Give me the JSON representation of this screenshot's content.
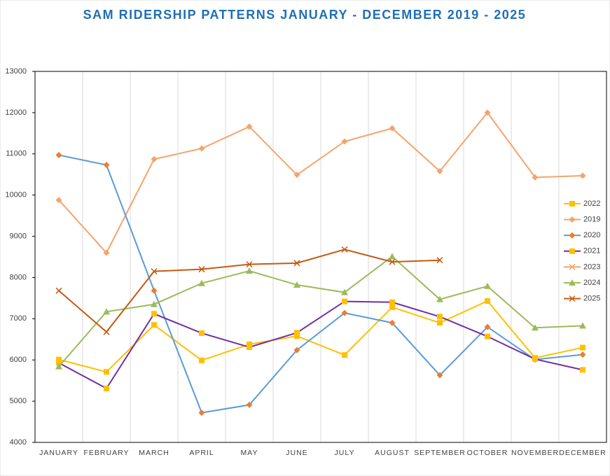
{
  "chart_data": {
    "type": "line",
    "title": "SAM RIDERSHIP PATTERNS JANUARY - DECEMBER 2019 - 2025",
    "categories": [
      "JANUARY",
      "FEBRUARY",
      "MARCH",
      "APRIL",
      "MAY",
      "JUNE",
      "JULY",
      "AUGUST",
      "SEPTEMBER",
      "OCTOBER",
      "NOVEMBER",
      "DECEMBER"
    ],
    "ylim": [
      4000,
      13000
    ],
    "yticks": [
      4000,
      5000,
      6000,
      7000,
      8000,
      9000,
      10000,
      11000,
      12000,
      13000
    ],
    "grid": "vertical",
    "legend": "right",
    "series": [
      {
        "name": "2022",
        "color": "#ffc000",
        "marker": "square",
        "marker_color": "#ffc000",
        "values": [
          6010,
          5710,
          6850,
          5990,
          6380,
          6580,
          6120,
          7280,
          6900,
          7430,
          6050,
          6300
        ]
      },
      {
        "name": "2019",
        "color": "#f4a46c",
        "marker": "diamond",
        "marker_color": "#f4a46c",
        "values": [
          9880,
          8600,
          10870,
          11130,
          11660,
          10490,
          11300,
          11620,
          10580,
          12000,
          10430,
          10470
        ]
      },
      {
        "name": "2020",
        "color": "#5b9bd5",
        "marker": "diamond",
        "marker_color": "#ed7d31",
        "values": [
          10970,
          10730,
          7680,
          4720,
          4910,
          6240,
          7140,
          6900,
          5630,
          6800,
          6010,
          6130
        ]
      },
      {
        "name": "2021",
        "color": "#7030a0",
        "marker": "square",
        "marker_color": "#ffc000",
        "values": [
          5930,
          5310,
          7120,
          6650,
          6310,
          6660,
          7420,
          7400,
          7050,
          6570,
          6020,
          5760
        ]
      },
      {
        "name": "2023",
        "color": "#f4a46c",
        "marker": "x",
        "marker_color": "#f4a46c",
        "values": [
          null,
          null,
          null,
          null,
          null,
          null,
          null,
          null,
          null,
          null,
          null,
          null
        ]
      },
      {
        "name": "2024",
        "color": "#9bbb59",
        "marker": "triangle",
        "marker_color": "#9bbb59",
        "values": [
          5840,
          7170,
          7350,
          7860,
          8160,
          7820,
          7640,
          8510,
          7470,
          7790,
          6780,
          6830
        ]
      },
      {
        "name": "2025",
        "color": "#c55a11",
        "marker": "x",
        "marker_color": "#c55a11",
        "values": [
          7680,
          6680,
          8150,
          8200,
          8320,
          8350,
          8680,
          8380,
          8420,
          null,
          null,
          null
        ]
      }
    ]
  }
}
